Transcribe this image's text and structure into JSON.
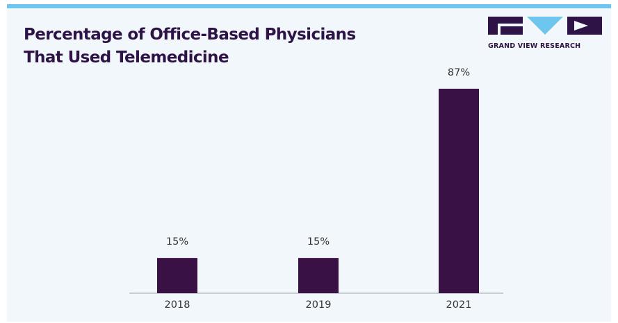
{
  "header": {
    "title_line1": "Percentage of Office-Based Physicians",
    "title_line2": "That Used Telemedicine",
    "logo_text": "GRAND VIEW RESEARCH"
  },
  "colors": {
    "bar": "#3a1145",
    "title": "#2e1446",
    "accent": "#6ec6ee",
    "background": "#f2f7fc"
  },
  "chart_data": {
    "type": "bar",
    "title": "Percentage of Office-Based Physicians That Used Telemedicine",
    "categories": [
      "2018",
      "2019",
      "2021"
    ],
    "values": [
      15,
      15,
      87
    ],
    "value_labels": [
      "15%",
      "15%",
      "87%"
    ],
    "xlabel": "",
    "ylabel": "",
    "ylim": [
      0,
      87
    ],
    "grid": false,
    "legend": "none"
  }
}
